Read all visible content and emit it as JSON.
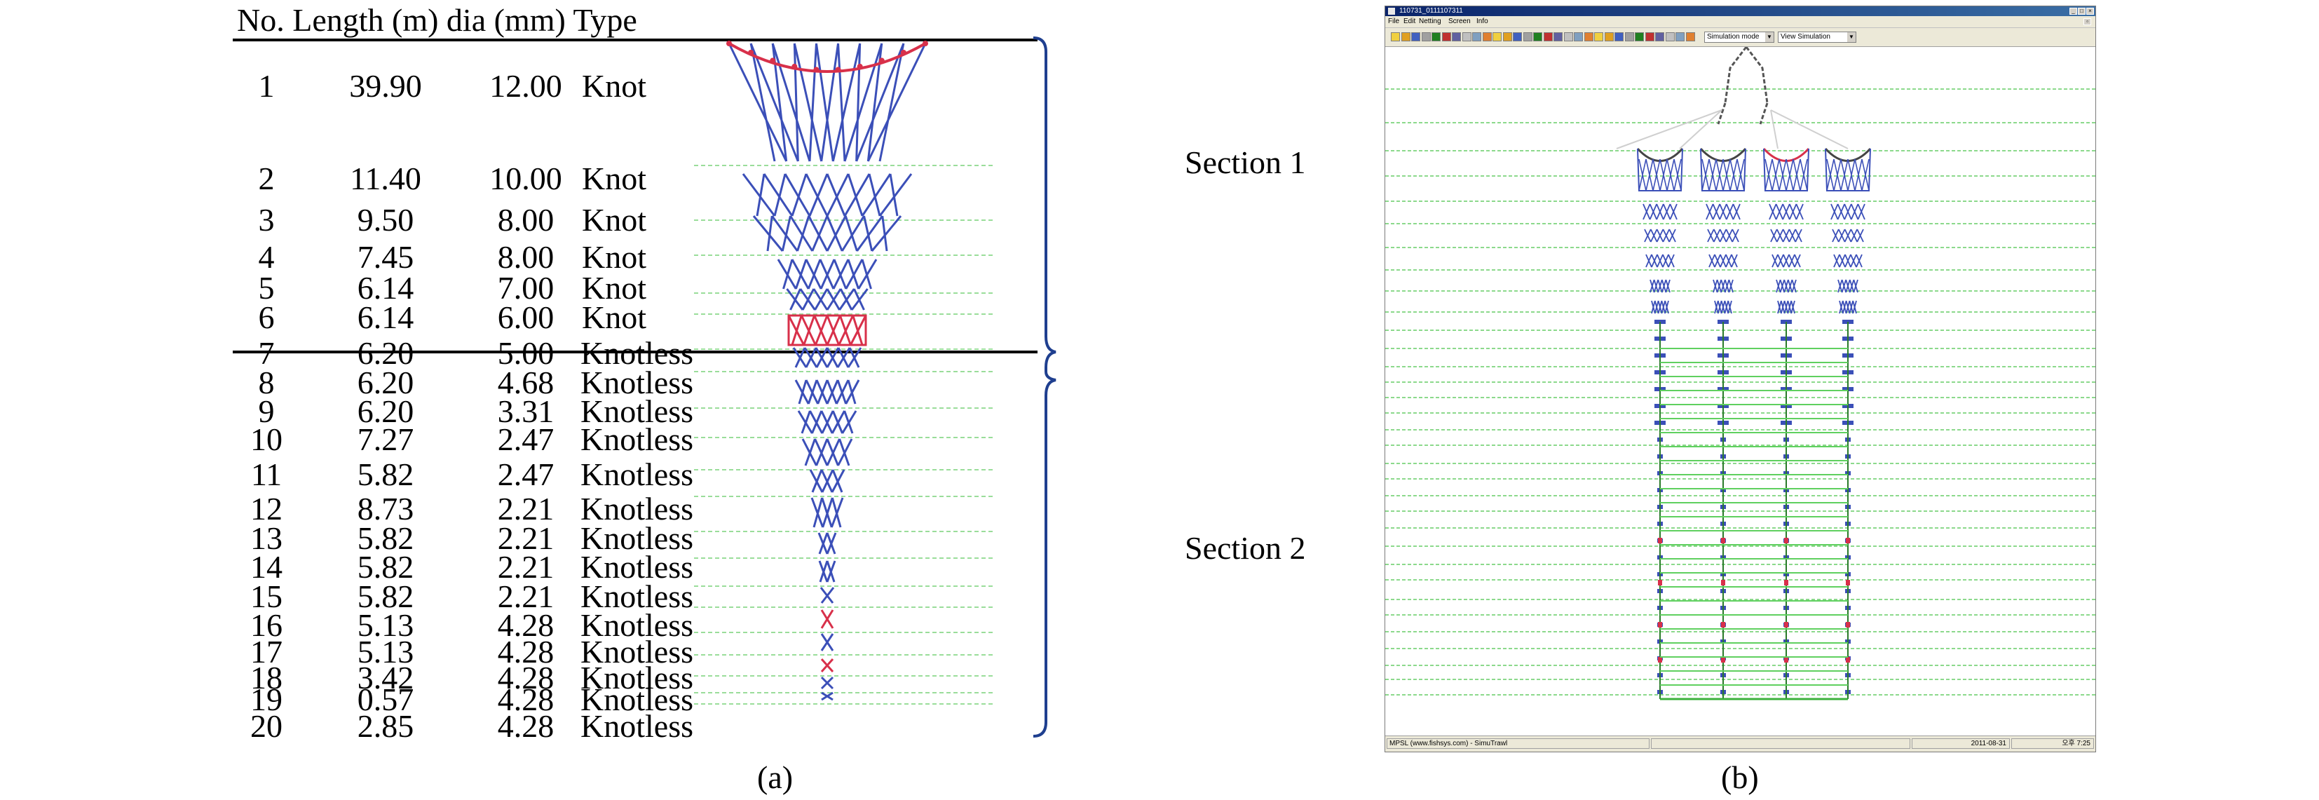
{
  "panel_a": {
    "header": "No. Length (m) dia (mm) Type",
    "rows": [
      {
        "no": "1",
        "length": "39.90",
        "dia": "12.00",
        "type": "Knot"
      },
      {
        "no": "2",
        "length": "11.40",
        "dia": "10.00",
        "type": "Knot"
      },
      {
        "no": "3",
        "length": "9.50",
        "dia": "8.00",
        "type": "Knot"
      },
      {
        "no": "4",
        "length": "7.45",
        "dia": "8.00",
        "type": "Knot"
      },
      {
        "no": "5",
        "length": "6.14",
        "dia": "7.00",
        "type": "Knot"
      },
      {
        "no": "6",
        "length": "6.14",
        "dia": "6.00",
        "type": "Knot"
      },
      {
        "no": "7",
        "length": "6.20",
        "dia": "5.00",
        "type": "Knotless"
      },
      {
        "no": "8",
        "length": "6.20",
        "dia": "4.68",
        "type": "Knotless"
      },
      {
        "no": "9",
        "length": "6.20",
        "dia": "3.31",
        "type": "Knotless"
      },
      {
        "no": "10",
        "length": "7.27",
        "dia": "2.47",
        "type": "Knotless"
      },
      {
        "no": "11",
        "length": "5.82",
        "dia": "2.47",
        "type": "Knotless"
      },
      {
        "no": "12",
        "length": "8.73",
        "dia": "2.21",
        "type": "Knotless"
      },
      {
        "no": "13",
        "length": "5.82",
        "dia": "2.21",
        "type": "Knotless"
      },
      {
        "no": "14",
        "length": "5.82",
        "dia": "2.21",
        "type": "Knotless"
      },
      {
        "no": "15",
        "length": "5.82",
        "dia": "2.21",
        "type": "Knotless"
      },
      {
        "no": "16",
        "length": "5.13",
        "dia": "4.28",
        "type": "Knotless"
      },
      {
        "no": "17",
        "length": "5.13",
        "dia": "4.28",
        "type": "Knotless"
      },
      {
        "no": "18",
        "length": "3.42",
        "dia": "4.28",
        "type": "Knotless"
      },
      {
        "no": "19",
        "length": "0.57",
        "dia": "4.28",
        "type": "Knotless"
      },
      {
        "no": "20",
        "length": "2.85",
        "dia": "4.28",
        "type": "Knotless"
      }
    ],
    "caption": "(a)"
  },
  "panel_b": {
    "section1_label": "Section 1",
    "section2_label": "Section 2",
    "caption": "(b)",
    "window": {
      "title": "110731_0111107311",
      "menu": [
        "File",
        "Edit",
        "Netting",
        "Screen",
        "Info"
      ],
      "mode_select": "Simulation mode",
      "view_select": "View Simulation",
      "status_left": "MPSL (www.fishsys.com) - SimuTrawl",
      "status_date": "2011-08-31",
      "status_right": "오후 7:25"
    }
  },
  "colors": {
    "net_blue": "#3b4fb8",
    "net_red": "#d8304a",
    "grid_green": "#6fcf6f",
    "brace_blue": "#1f3f8f",
    "title_bar": "#0a246a"
  }
}
